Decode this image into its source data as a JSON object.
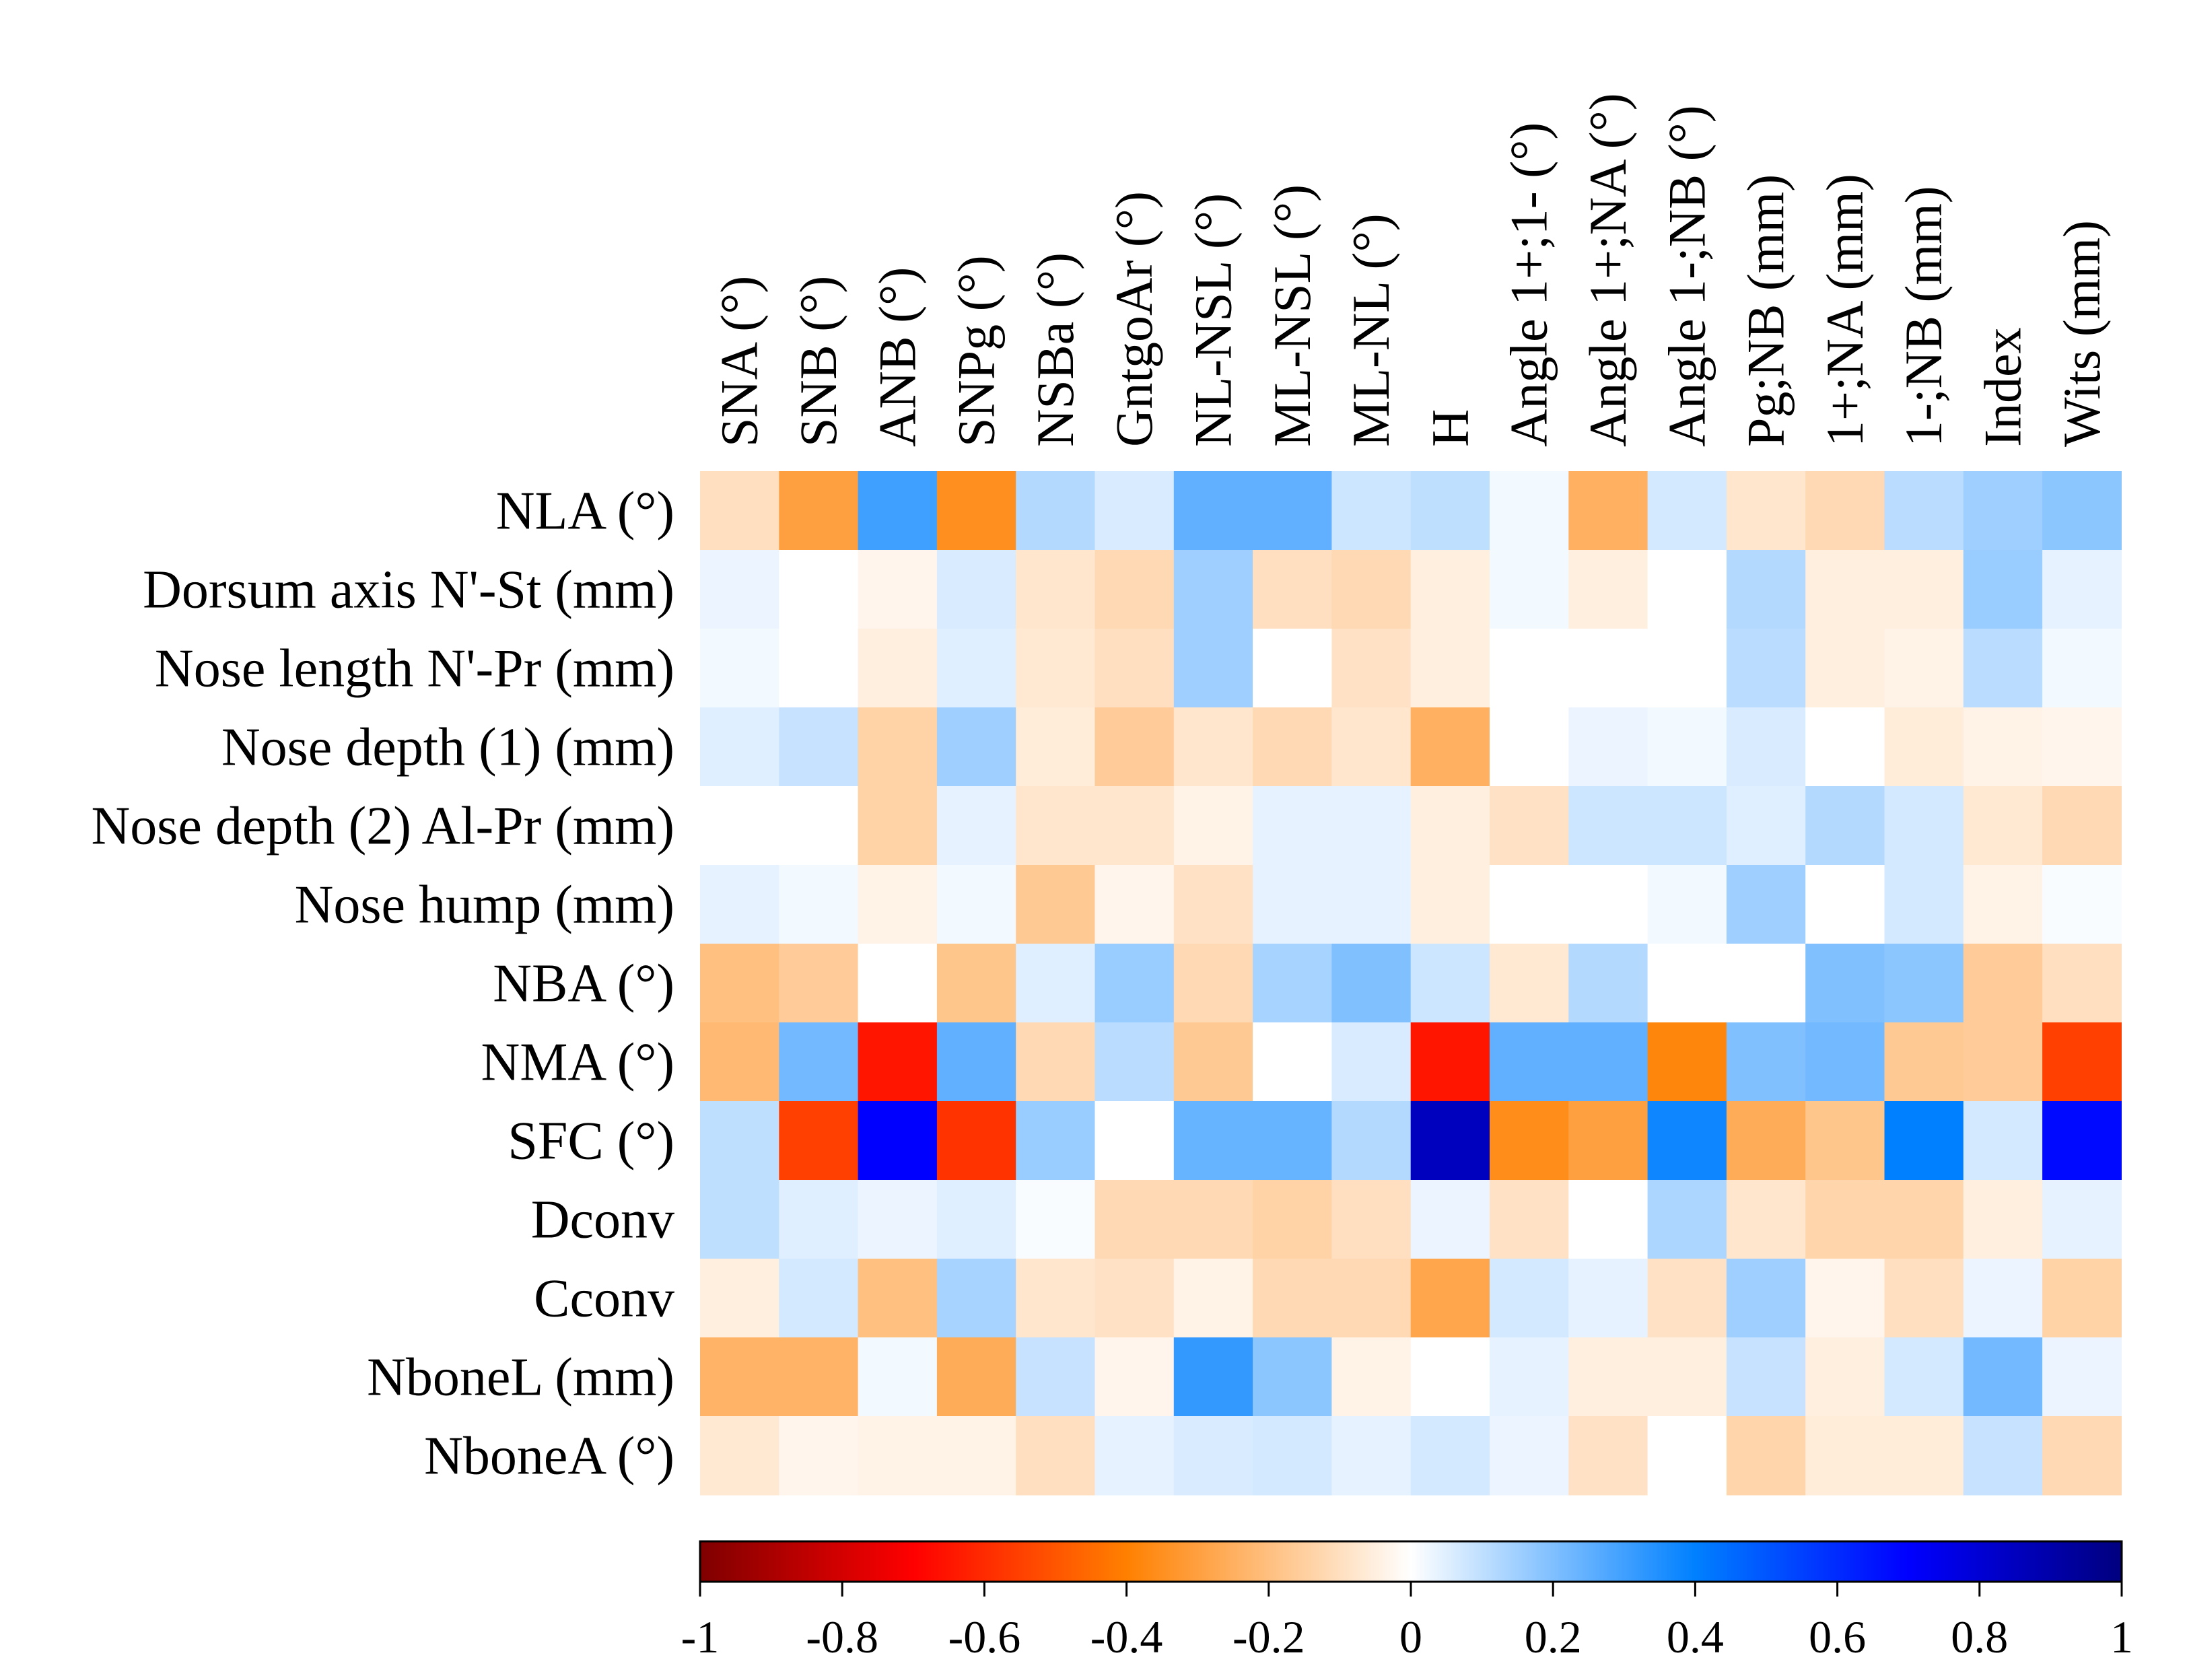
{
  "chart_data": {
    "type": "heatmap",
    "title": "",
    "columns": [
      "SNA (°)",
      "SNB (°)",
      "ANB (°)",
      "SNPg (°)",
      "NSBa (°)",
      "GntgoAr (°)",
      "NL-NSL (°)",
      "ML-NSL (°)",
      "ML-NL (°)",
      "H",
      "Angle 1+;1- (°)",
      "Angle 1+;NA (°)",
      "Angle 1-;NB (°)",
      "Pg;NB (mm)",
      "1+;NA (mm)",
      "1-;NB (mm)",
      "Index",
      "Wits (mm)"
    ],
    "rows": [
      "NLA (°)",
      "Dorsum axis N'-St (mm)",
      "Nose length N'-Pr (mm)",
      "Nose depth (1) (mm)",
      "Nose depth (2) Al-Pr (mm)",
      "Nose hump (mm)",
      "NBA (°)",
      "NMA (°)",
      "SFC (°)",
      "Dconv",
      "Cconv",
      "NboneL (mm)",
      "NboneA (°)"
    ],
    "values": [
      [
        -0.1,
        -0.3,
        0.3,
        -0.35,
        0.12,
        0.06,
        0.25,
        0.25,
        0.08,
        0.1,
        0.02,
        -0.25,
        0.07,
        -0.08,
        -0.12,
        0.11,
        0.15,
        0.18
      ],
      [
        0.03,
        0.0,
        -0.03,
        0.06,
        -0.08,
        -0.12,
        0.15,
        -0.1,
        -0.12,
        -0.05,
        0.02,
        -0.05,
        0.0,
        0.12,
        -0.05,
        -0.05,
        0.16,
        0.04
      ],
      [
        0.02,
        0.0,
        -0.05,
        0.05,
        -0.07,
        -0.1,
        0.15,
        0.0,
        -0.09,
        -0.05,
        0.0,
        0.0,
        0.0,
        0.11,
        -0.05,
        -0.04,
        0.11,
        0.02
      ],
      [
        0.05,
        0.09,
        -0.14,
        0.15,
        -0.06,
        -0.16,
        -0.08,
        -0.12,
        -0.08,
        -0.25,
        0.0,
        0.03,
        0.02,
        0.06,
        0.0,
        -0.06,
        -0.04,
        -0.03
      ],
      [
        0.0,
        0.0,
        -0.14,
        0.04,
        -0.08,
        -0.08,
        -0.04,
        0.04,
        0.04,
        -0.05,
        -0.09,
        0.08,
        0.08,
        0.05,
        0.12,
        0.07,
        -0.07,
        -0.12
      ],
      [
        0.04,
        0.02,
        -0.04,
        0.02,
        -0.17,
        -0.03,
        -0.09,
        0.04,
        0.04,
        -0.05,
        0.0,
        0.0,
        0.02,
        0.15,
        0.0,
        0.07,
        -0.04,
        0.01
      ],
      [
        -0.2,
        -0.16,
        0.0,
        -0.18,
        0.05,
        0.16,
        -0.12,
        0.14,
        0.2,
        0.08,
        -0.07,
        0.12,
        0.0,
        0.0,
        0.2,
        0.18,
        -0.16,
        -0.1
      ],
      [
        -0.22,
        0.22,
        -0.65,
        0.25,
        -0.12,
        0.11,
        -0.17,
        0.0,
        0.06,
        -0.65,
        0.25,
        0.25,
        -0.38,
        0.2,
        0.22,
        -0.17,
        -0.16,
        -0.55
      ],
      [
        0.1,
        -0.55,
        0.7,
        -0.58,
        0.16,
        0.0,
        0.24,
        0.24,
        0.12,
        0.85,
        -0.36,
        -0.3,
        0.38,
        -0.26,
        -0.18,
        0.4,
        0.07,
        0.68
      ],
      [
        0.1,
        0.05,
        0.03,
        0.05,
        0.01,
        -0.12,
        -0.12,
        -0.14,
        -0.1,
        0.03,
        -0.09,
        0.0,
        0.13,
        -0.08,
        -0.13,
        -0.13,
        -0.05,
        0.04
      ],
      [
        -0.05,
        0.07,
        -0.2,
        0.14,
        -0.08,
        -0.09,
        -0.04,
        -0.12,
        -0.12,
        -0.28,
        0.07,
        0.04,
        -0.09,
        0.15,
        -0.03,
        -0.1,
        0.03,
        -0.14
      ],
      [
        -0.24,
        -0.24,
        0.02,
        -0.26,
        0.09,
        -0.03,
        0.32,
        0.18,
        -0.04,
        0.0,
        0.04,
        -0.05,
        -0.05,
        0.09,
        -0.05,
        0.07,
        0.22,
        0.03
      ],
      [
        -0.07,
        -0.03,
        -0.04,
        -0.04,
        -0.1,
        0.04,
        0.06,
        0.07,
        0.04,
        0.07,
        0.03,
        -0.09,
        0.0,
        -0.13,
        -0.06,
        -0.06,
        0.09,
        -0.12
      ]
    ],
    "colorbar": {
      "range": [
        -1,
        1
      ],
      "ticks": [
        "-1",
        "-0.8",
        "-0.6",
        "-0.4",
        "-0.2",
        "0",
        "0.2",
        "0.4",
        "0.6",
        "0.8",
        "1"
      ],
      "tick_values": [
        -1,
        -0.8,
        -0.6,
        -0.4,
        -0.2,
        0,
        0.2,
        0.4,
        0.6,
        0.8,
        1
      ],
      "colors": [
        {
          "v": -1.0,
          "c": "#7f0000"
        },
        {
          "v": -0.7,
          "c": "#ff0000"
        },
        {
          "v": -0.4,
          "c": "#ff8000"
        },
        {
          "v": 0.0,
          "c": "#ffffff"
        },
        {
          "v": 0.4,
          "c": "#0080ff"
        },
        {
          "v": 0.7,
          "c": "#0000ff"
        },
        {
          "v": 1.0,
          "c": "#00007f"
        }
      ]
    },
    "legend_position": "bottom"
  }
}
